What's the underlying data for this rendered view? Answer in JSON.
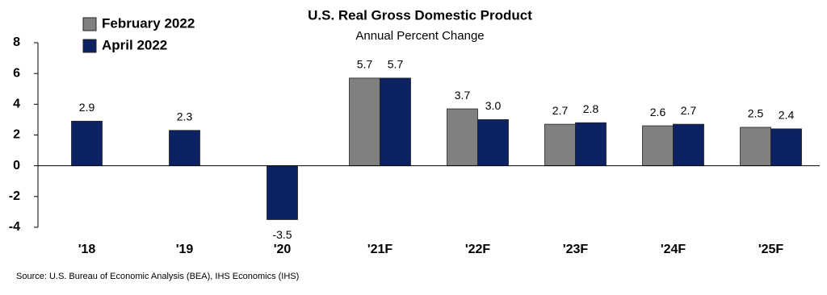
{
  "chart_data": {
    "type": "bar",
    "title": "U.S. Real Gross Domestic Product",
    "subtitle": "Annual Percent Change",
    "source": "Source:  U.S. Bureau of Economic Analysis (BEA), IHS Economics (IHS)",
    "categories": [
      "'18",
      "'19",
      "'20",
      "'21F",
      "'22F",
      "'23F",
      "'24F",
      "'25F"
    ],
    "series": [
      {
        "name": "February 2022",
        "color": "#808080",
        "values": [
          null,
          null,
          null,
          5.7,
          3.7,
          2.7,
          2.6,
          2.5
        ],
        "value_labels": [
          null,
          null,
          null,
          "5.7",
          "3.7",
          "2.7",
          "2.6",
          "2.5"
        ]
      },
      {
        "name": "April 2022",
        "color": "#0c2263",
        "values": [
          2.9,
          2.3,
          -3.5,
          5.7,
          3.0,
          2.8,
          2.7,
          2.4
        ],
        "value_labels": [
          "2.9",
          "2.3",
          "-3.5",
          "5.7",
          "3.0",
          "2.8",
          "2.7",
          "2.4"
        ]
      }
    ],
    "ylim": [
      -4,
      8
    ],
    "yticks": [
      -4,
      -2,
      0,
      2,
      4,
      6,
      8
    ],
    "legend": "top-left"
  }
}
